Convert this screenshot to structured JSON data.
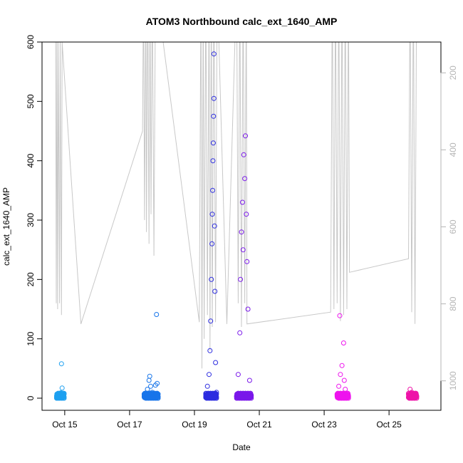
{
  "chart_data": {
    "type": "scatter",
    "title": "ATOM3 Northbound calc_ext_1640_AMP",
    "xlabel": "Date",
    "ylabel": "calc_ext_1640_AMP",
    "x_ticks": [
      "Oct 15",
      "Oct 17",
      "Oct 19",
      "Oct 21",
      "Oct 23",
      "Oct 25"
    ],
    "x_tick_days": [
      15,
      17,
      19,
      21,
      23,
      25
    ],
    "xlim_days": [
      14.3,
      26.6
    ],
    "ylim": [
      0,
      600
    ],
    "y_ticks": [
      0,
      100,
      200,
      300,
      400,
      500,
      600
    ],
    "y2_ticks": [
      200,
      400,
      600,
      800,
      1000
    ],
    "y2lim": [
      1045,
      120
    ],
    "grid": false,
    "series": [
      {
        "color": "#1ea0f0",
        "points": [
          [
            14.75,
            1
          ],
          [
            14.8,
            3
          ],
          [
            14.85,
            6
          ],
          [
            14.88,
            9
          ],
          [
            14.9,
            58
          ],
          [
            14.92,
            17
          ],
          [
            14.95,
            2
          ],
          [
            14.98,
            8
          ],
          [
            14.87,
            4
          ],
          [
            14.82,
            0
          ]
        ]
      },
      {
        "color": "#1875ea",
        "points": [
          [
            17.45,
            2
          ],
          [
            17.5,
            8
          ],
          [
            17.55,
            15
          ],
          [
            17.6,
            30
          ],
          [
            17.62,
            37
          ],
          [
            17.65,
            20
          ],
          [
            17.7,
            10
          ],
          [
            17.75,
            5
          ],
          [
            17.8,
            22
          ],
          [
            17.83,
            141
          ],
          [
            17.85,
            25
          ],
          [
            17.88,
            3
          ]
        ]
      },
      {
        "color": "#2d2de0",
        "points": [
          [
            19.35,
            3
          ],
          [
            19.4,
            20
          ],
          [
            19.45,
            40
          ],
          [
            19.48,
            80
          ],
          [
            19.5,
            130
          ],
          [
            19.52,
            200
          ],
          [
            19.54,
            260
          ],
          [
            19.55,
            310
          ],
          [
            19.56,
            350
          ],
          [
            19.57,
            400
          ],
          [
            19.58,
            430
          ],
          [
            19.59,
            475
          ],
          [
            19.6,
            505
          ],
          [
            19.6,
            580
          ],
          [
            19.62,
            290
          ],
          [
            19.63,
            180
          ],
          [
            19.65,
            60
          ],
          [
            19.68,
            10
          ]
        ]
      },
      {
        "color": "#7a18ea",
        "points": [
          [
            20.3,
            3
          ],
          [
            20.35,
            40
          ],
          [
            20.4,
            110
          ],
          [
            20.42,
            200
          ],
          [
            20.45,
            280
          ],
          [
            20.48,
            330
          ],
          [
            20.5,
            250
          ],
          [
            20.52,
            410
          ],
          [
            20.55,
            370
          ],
          [
            20.57,
            442
          ],
          [
            20.6,
            310
          ],
          [
            20.62,
            230
          ],
          [
            20.65,
            150
          ],
          [
            20.7,
            30
          ],
          [
            20.75,
            5
          ]
        ]
      },
      {
        "color": "#ee14ee",
        "points": [
          [
            23.4,
            5
          ],
          [
            23.45,
            20
          ],
          [
            23.48,
            139
          ],
          [
            23.5,
            40
          ],
          [
            23.55,
            55
          ],
          [
            23.6,
            93
          ],
          [
            23.62,
            30
          ],
          [
            23.65,
            15
          ],
          [
            23.7,
            5
          ],
          [
            23.75,
            2
          ]
        ]
      },
      {
        "color": "#ee14a8",
        "points": [
          [
            25.6,
            2
          ],
          [
            25.65,
            15
          ],
          [
            25.7,
            10
          ],
          [
            25.75,
            5
          ],
          [
            25.8,
            8
          ],
          [
            25.85,
            3
          ]
        ]
      }
    ],
    "trace": {
      "color": "#c8c8c8",
      "points": [
        [
          14.72,
          640
        ],
        [
          14.74,
          160
        ],
        [
          14.76,
          600
        ],
        [
          14.78,
          150
        ],
        [
          14.8,
          600
        ],
        [
          14.84,
          160
        ],
        [
          14.86,
          600
        ],
        [
          14.9,
          140
        ],
        [
          14.92,
          600
        ],
        [
          15.5,
          125
        ],
        [
          17.4,
          450
        ],
        [
          17.43,
          700
        ],
        [
          17.46,
          300
        ],
        [
          17.5,
          700
        ],
        [
          17.52,
          280
        ],
        [
          17.56,
          700
        ],
        [
          17.6,
          260
        ],
        [
          17.63,
          700
        ],
        [
          17.66,
          310
        ],
        [
          17.7,
          700
        ],
        [
          17.75,
          240
        ],
        [
          17.8,
          700
        ],
        [
          19.15,
          128
        ],
        [
          19.2,
          700
        ],
        [
          19.23,
          50
        ],
        [
          19.27,
          700
        ],
        [
          19.3,
          100
        ],
        [
          19.35,
          700
        ],
        [
          19.4,
          140
        ],
        [
          19.45,
          700
        ],
        [
          19.48,
          80
        ],
        [
          19.52,
          700
        ],
        [
          19.55,
          120
        ],
        [
          19.6,
          700
        ],
        [
          19.65,
          128
        ],
        [
          19.7,
          700
        ],
        [
          20.0,
          125
        ],
        [
          20.3,
          700
        ],
        [
          20.35,
          160
        ],
        [
          20.4,
          700
        ],
        [
          20.45,
          120
        ],
        [
          20.5,
          700
        ],
        [
          20.55,
          160
        ],
        [
          20.6,
          700
        ],
        [
          20.62,
          125
        ],
        [
          23.2,
          145
        ],
        [
          23.25,
          700
        ],
        [
          23.3,
          150
        ],
        [
          23.35,
          700
        ],
        [
          23.4,
          160
        ],
        [
          23.45,
          700
        ],
        [
          23.5,
          130
        ],
        [
          23.55,
          700
        ],
        [
          23.6,
          140
        ],
        [
          23.65,
          700
        ],
        [
          23.7,
          150
        ],
        [
          23.75,
          700
        ],
        [
          23.78,
          212
        ],
        [
          25.6,
          235
        ],
        [
          25.65,
          700
        ],
        [
          25.7,
          145
        ],
        [
          25.75,
          700
        ],
        [
          25.8,
          125
        ],
        [
          25.85,
          700
        ]
      ]
    }
  }
}
